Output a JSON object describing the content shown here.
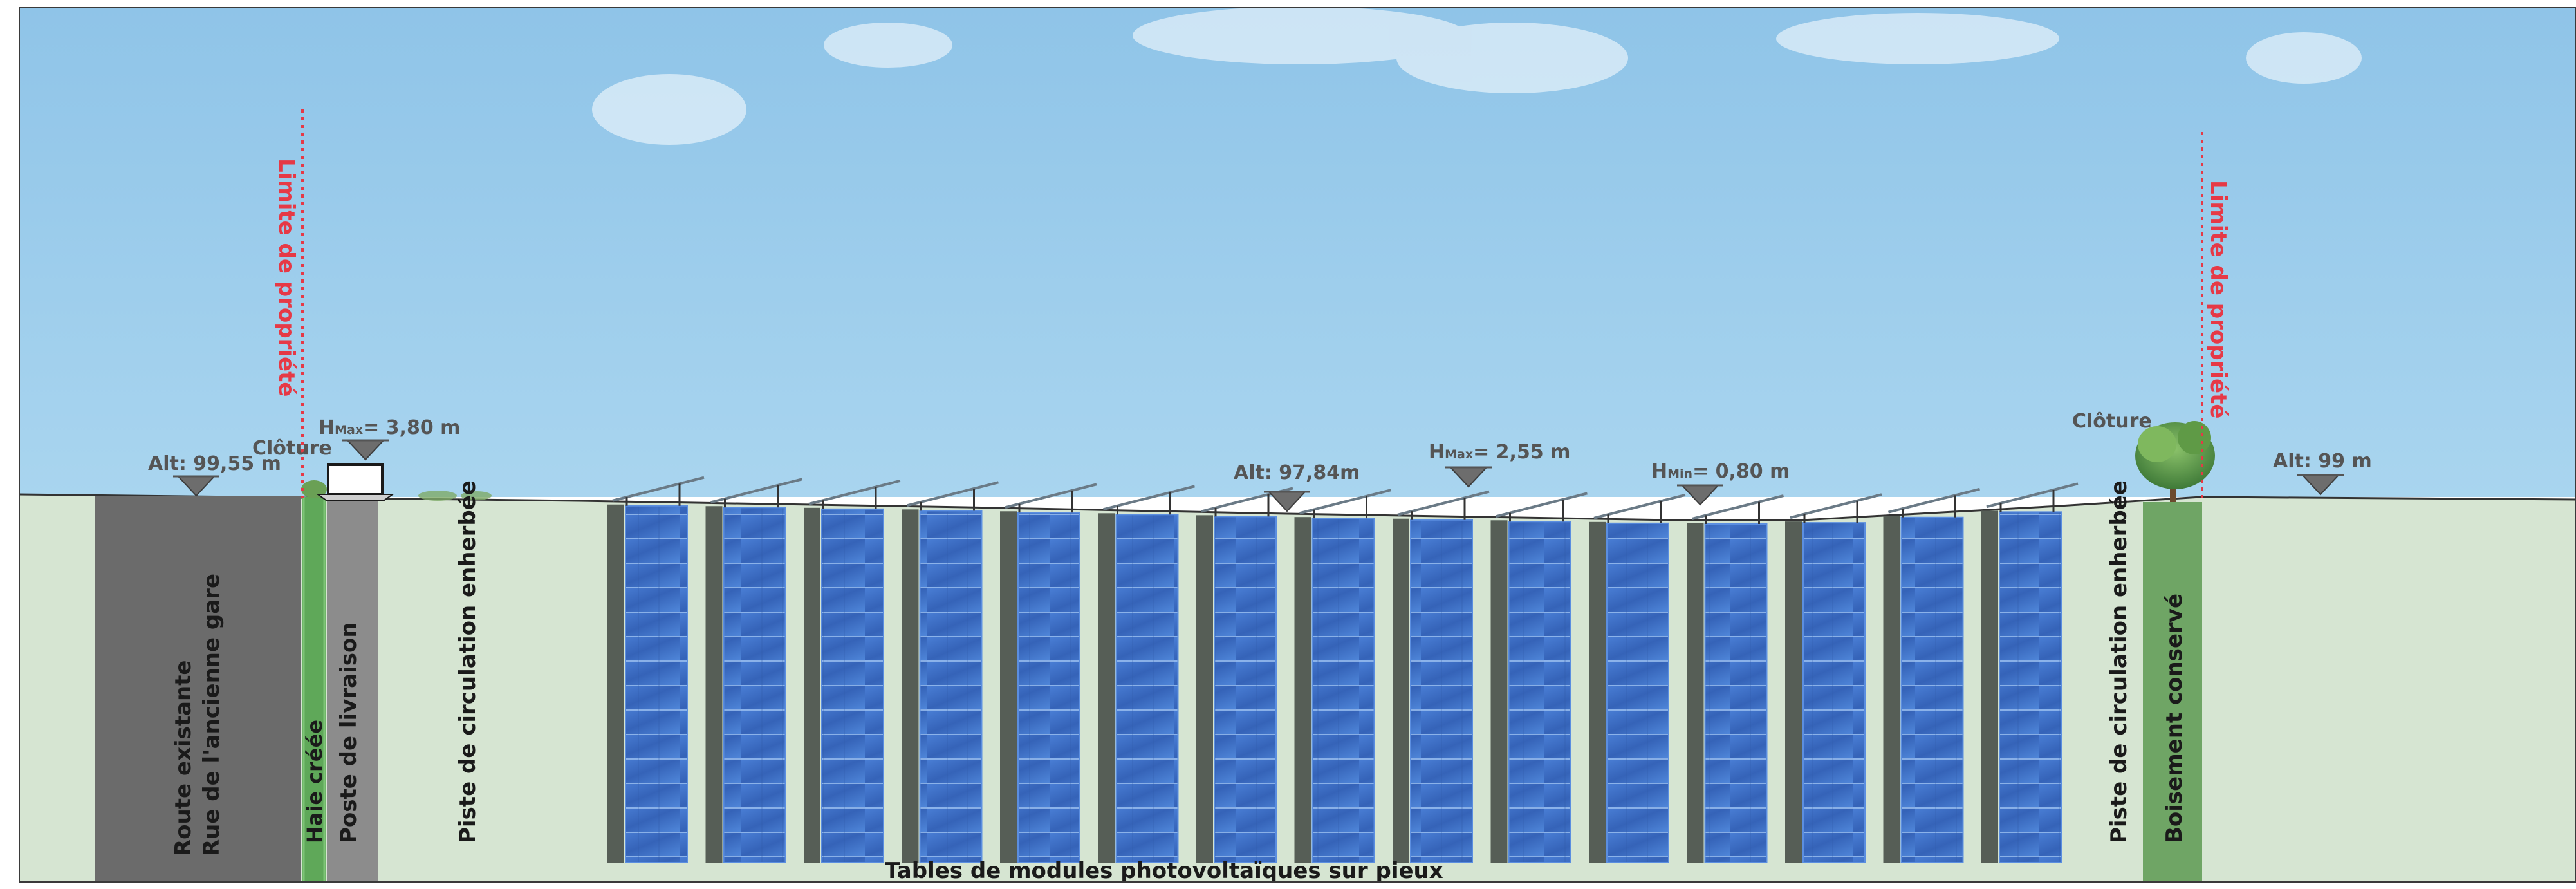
{
  "colors": {
    "sky_top": "#9ccbe9",
    "sky_bottom": "#a8d4ef",
    "ground": "#d6e5d2",
    "road": "#6b6b6b",
    "hedge": "#5fa859",
    "delivery_strip": "#8c8c8c",
    "forest": "#6fa565",
    "panel_blue": "#3d6fc4",
    "panel_edge": "#5b8ee0",
    "pillar": "#565e56",
    "property_line": "#e63946",
    "marker": "#6d6d6d",
    "annotation": "#555555",
    "label": "#1a1a1a"
  },
  "property_limits": {
    "left_label": "Limite de propriété",
    "right_label": "Limite de propriété"
  },
  "fences": {
    "left_label": "Clôture",
    "right_label": "Clôture"
  },
  "altitudes": [
    {
      "id": "left",
      "text": "Alt: 99,55 m"
    },
    {
      "id": "center",
      "text": "Alt: 97,84m"
    },
    {
      "id": "right",
      "text": "Alt: 99 m"
    }
  ],
  "heights": [
    {
      "id": "delivery",
      "prefix": "H",
      "sub": "Max",
      "value": "= 3,80 m"
    },
    {
      "id": "panel-max",
      "prefix": "H",
      "sub": "Max",
      "value": "= 2,55 m"
    },
    {
      "id": "panel-min",
      "prefix": "H",
      "sub": "Min",
      "value": "= 0,80 m"
    }
  ],
  "zones": {
    "road_line1": "Route existante",
    "road_line2": "Rue de l'ancienne gare",
    "hedge": "Haie créée",
    "delivery": "Poste de livraison",
    "track_left": "Piste de circulation enherbée",
    "track_right": "Piste de circulation enherbée",
    "forest": "Boisement conservé"
  },
  "panels": {
    "caption": "Tables de modules photovoltaïques sur pieux",
    "table_count": 15
  }
}
